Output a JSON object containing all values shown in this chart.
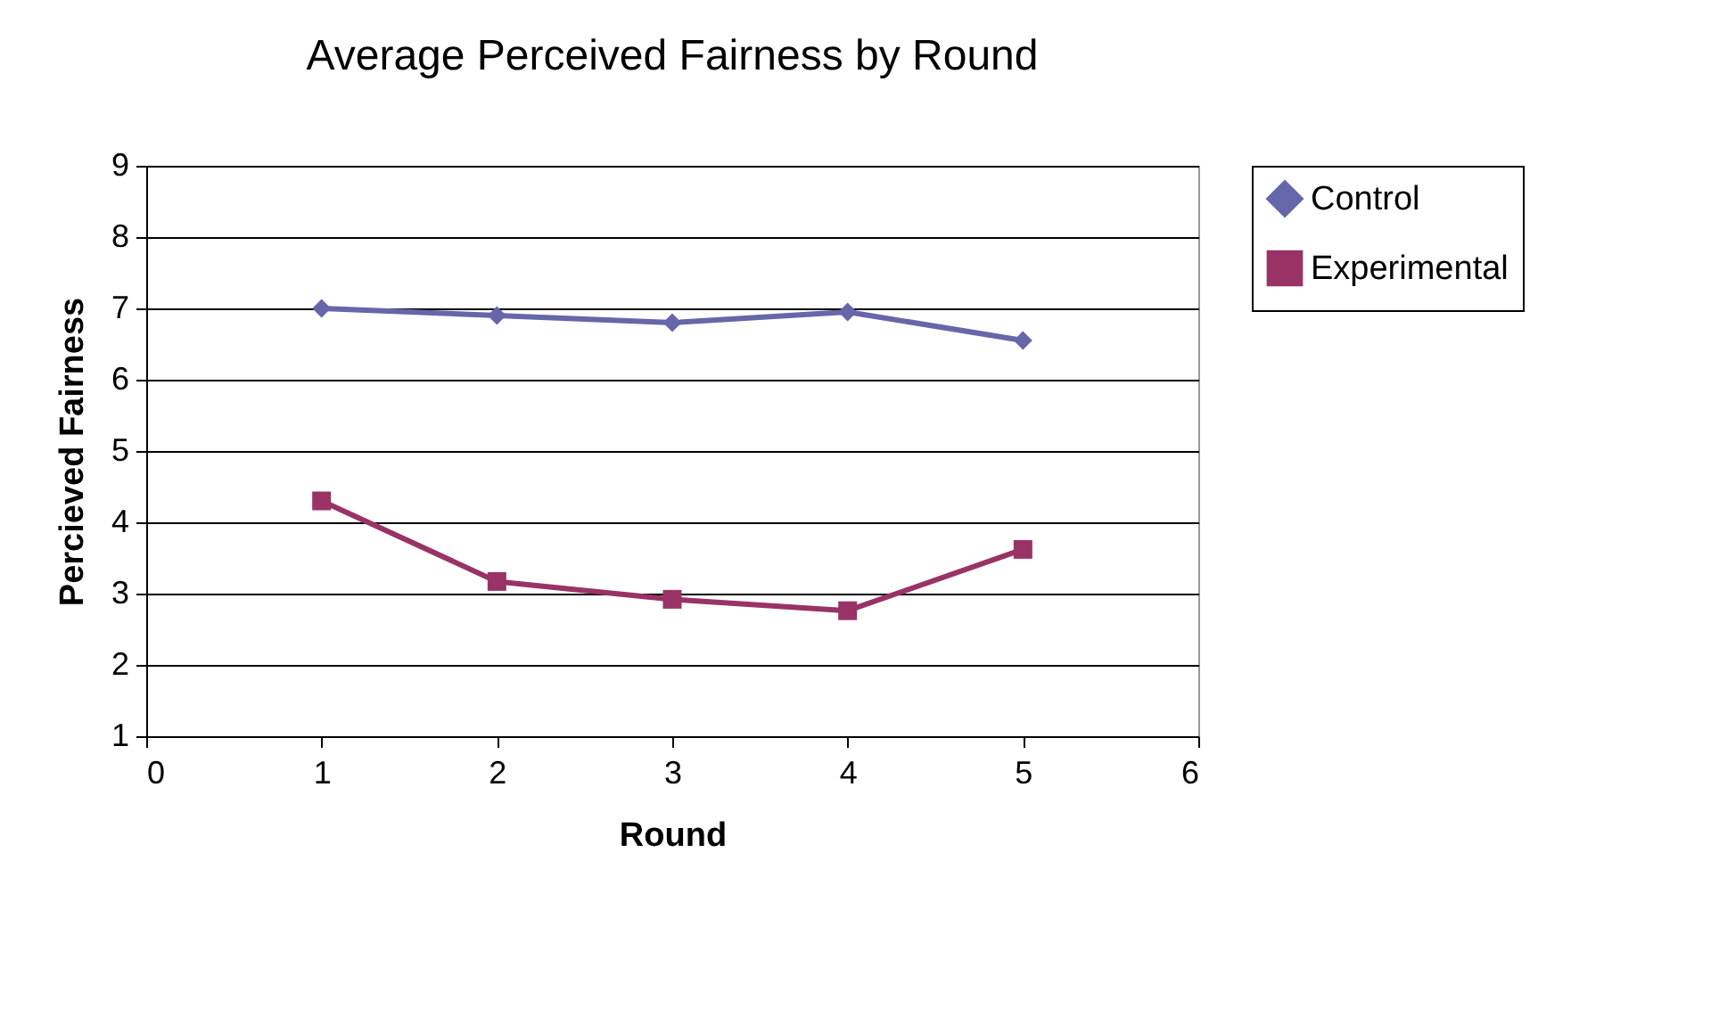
{
  "chart_data": {
    "type": "line",
    "title": "Average Perceived Fairness by Round",
    "xlabel": "Round",
    "ylabel": "Percieved Fairness",
    "x": [
      1,
      2,
      3,
      4,
      5
    ],
    "series": [
      {
        "name": "Control",
        "color": "#6666aa",
        "marker": "diamond",
        "values": [
          7.0,
          6.9,
          6.8,
          6.95,
          6.55
        ]
      },
      {
        "name": "Experimental",
        "color": "#993366",
        "marker": "square",
        "values": [
          4.3,
          3.17,
          2.92,
          2.76,
          3.62
        ]
      }
    ],
    "xlim": [
      0,
      6
    ],
    "xticks": [
      0,
      1,
      2,
      3,
      4,
      5,
      6
    ],
    "ylim": [
      1,
      9
    ],
    "yticks": [
      1,
      2,
      3,
      4,
      5,
      6,
      7,
      8,
      9
    ],
    "grid": "y",
    "legend": "right"
  }
}
